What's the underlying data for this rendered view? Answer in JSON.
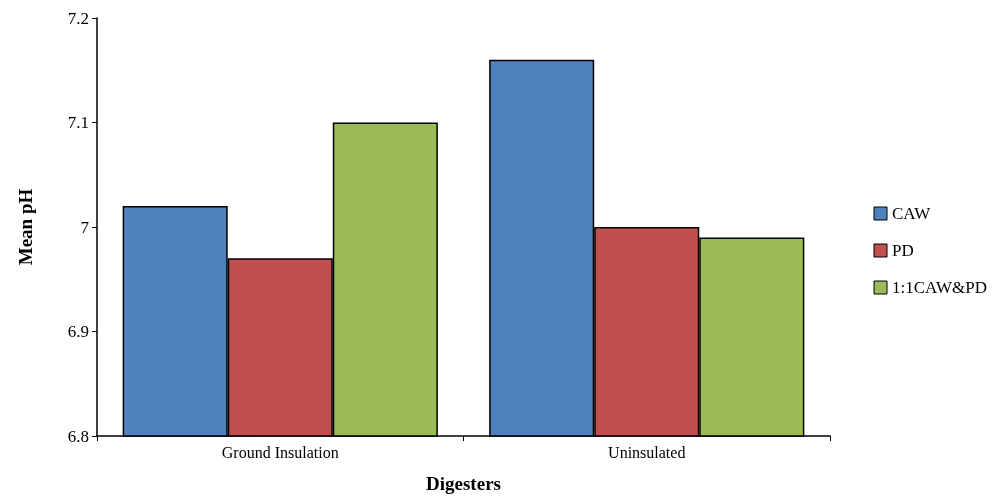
{
  "chart_data": {
    "type": "bar",
    "xlabel": "Digesters",
    "ylabel": "Mean pH",
    "categories": [
      "Ground Insulation",
      "Uninsulated"
    ],
    "series": [
      {
        "name": "CAW",
        "color": "#4f81bd",
        "values": [
          7.02,
          7.16
        ]
      },
      {
        "name": "PD",
        "color": "#c0504d",
        "values": [
          6.97,
          7.0
        ]
      },
      {
        "name": "1:1CAW&PD",
        "color": "#9bbb59",
        "values": [
          7.1,
          6.99
        ]
      }
    ],
    "ylim": [
      6.8,
      7.2
    ],
    "yticks": [
      6.8,
      6.9,
      7,
      7.1,
      7.2
    ],
    "grid": false,
    "legend": "right"
  }
}
